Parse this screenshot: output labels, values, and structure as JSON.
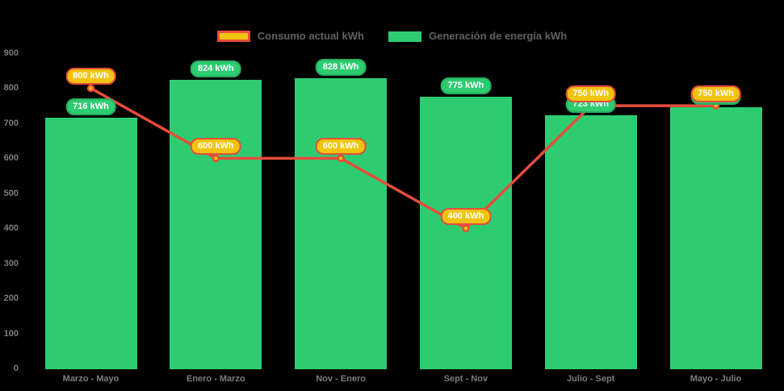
{
  "app": {
    "background": "#000000"
  },
  "legend": {
    "items": [
      {
        "id": "consumo",
        "label": "Consumo actual kWh",
        "swatch_fill": "#f1c40f",
        "swatch_border": "#e74c3c"
      },
      {
        "id": "generacion",
        "label": "Generación de energía kWh",
        "swatch_fill": "#2ecc71",
        "swatch_border": "#2ecc71"
      }
    ]
  },
  "chart_data": {
    "type": "bar",
    "title": "",
    "categories": [
      "Marzo - Mayo",
      "Enero - Marzo",
      "Nov - Enero",
      "Sept - Nov",
      "Julio - Sept",
      "Mayo - Julio"
    ],
    "series": [
      {
        "name": "Generación de energía kWh",
        "kind": "bar",
        "color": "#2ecc71",
        "label_bg": "#2ecc71",
        "label_border": "#27ae60",
        "values": [
          716,
          824,
          828,
          775,
          723,
          745
        ],
        "point_labels": [
          "716 kWh",
          "824 kWh",
          "828 kWh",
          "775 kWh",
          "723 kWh",
          "745 kWh"
        ],
        "hidden_label_indices": [
          5
        ]
      },
      {
        "name": "Consumo actual kWh",
        "kind": "line",
        "color": "#e74c3c",
        "marker_fill": "#f1c40f",
        "marker_border": "#e74c3c",
        "label_bg": "#f1c40f",
        "label_border": "#e74c3c",
        "values": [
          800,
          600,
          600,
          400,
          750,
          750
        ],
        "point_labels": [
          "800 kWh",
          "600 kWh",
          "600 kWh",
          "400 kWh",
          "750 kWh",
          "750 kWh"
        ]
      }
    ],
    "ylim": [
      0,
      900
    ],
    "y_tick_step": 100,
    "y_tick_labels": [
      "0",
      "100",
      "200",
      "300",
      "400",
      "500",
      "600",
      "700",
      "800",
      "900"
    ],
    "xlabel": "",
    "ylabel": "",
    "grid": false,
    "legend_position": "top",
    "background": "#000000",
    "axis_label_color": "#7d7d7d"
  }
}
